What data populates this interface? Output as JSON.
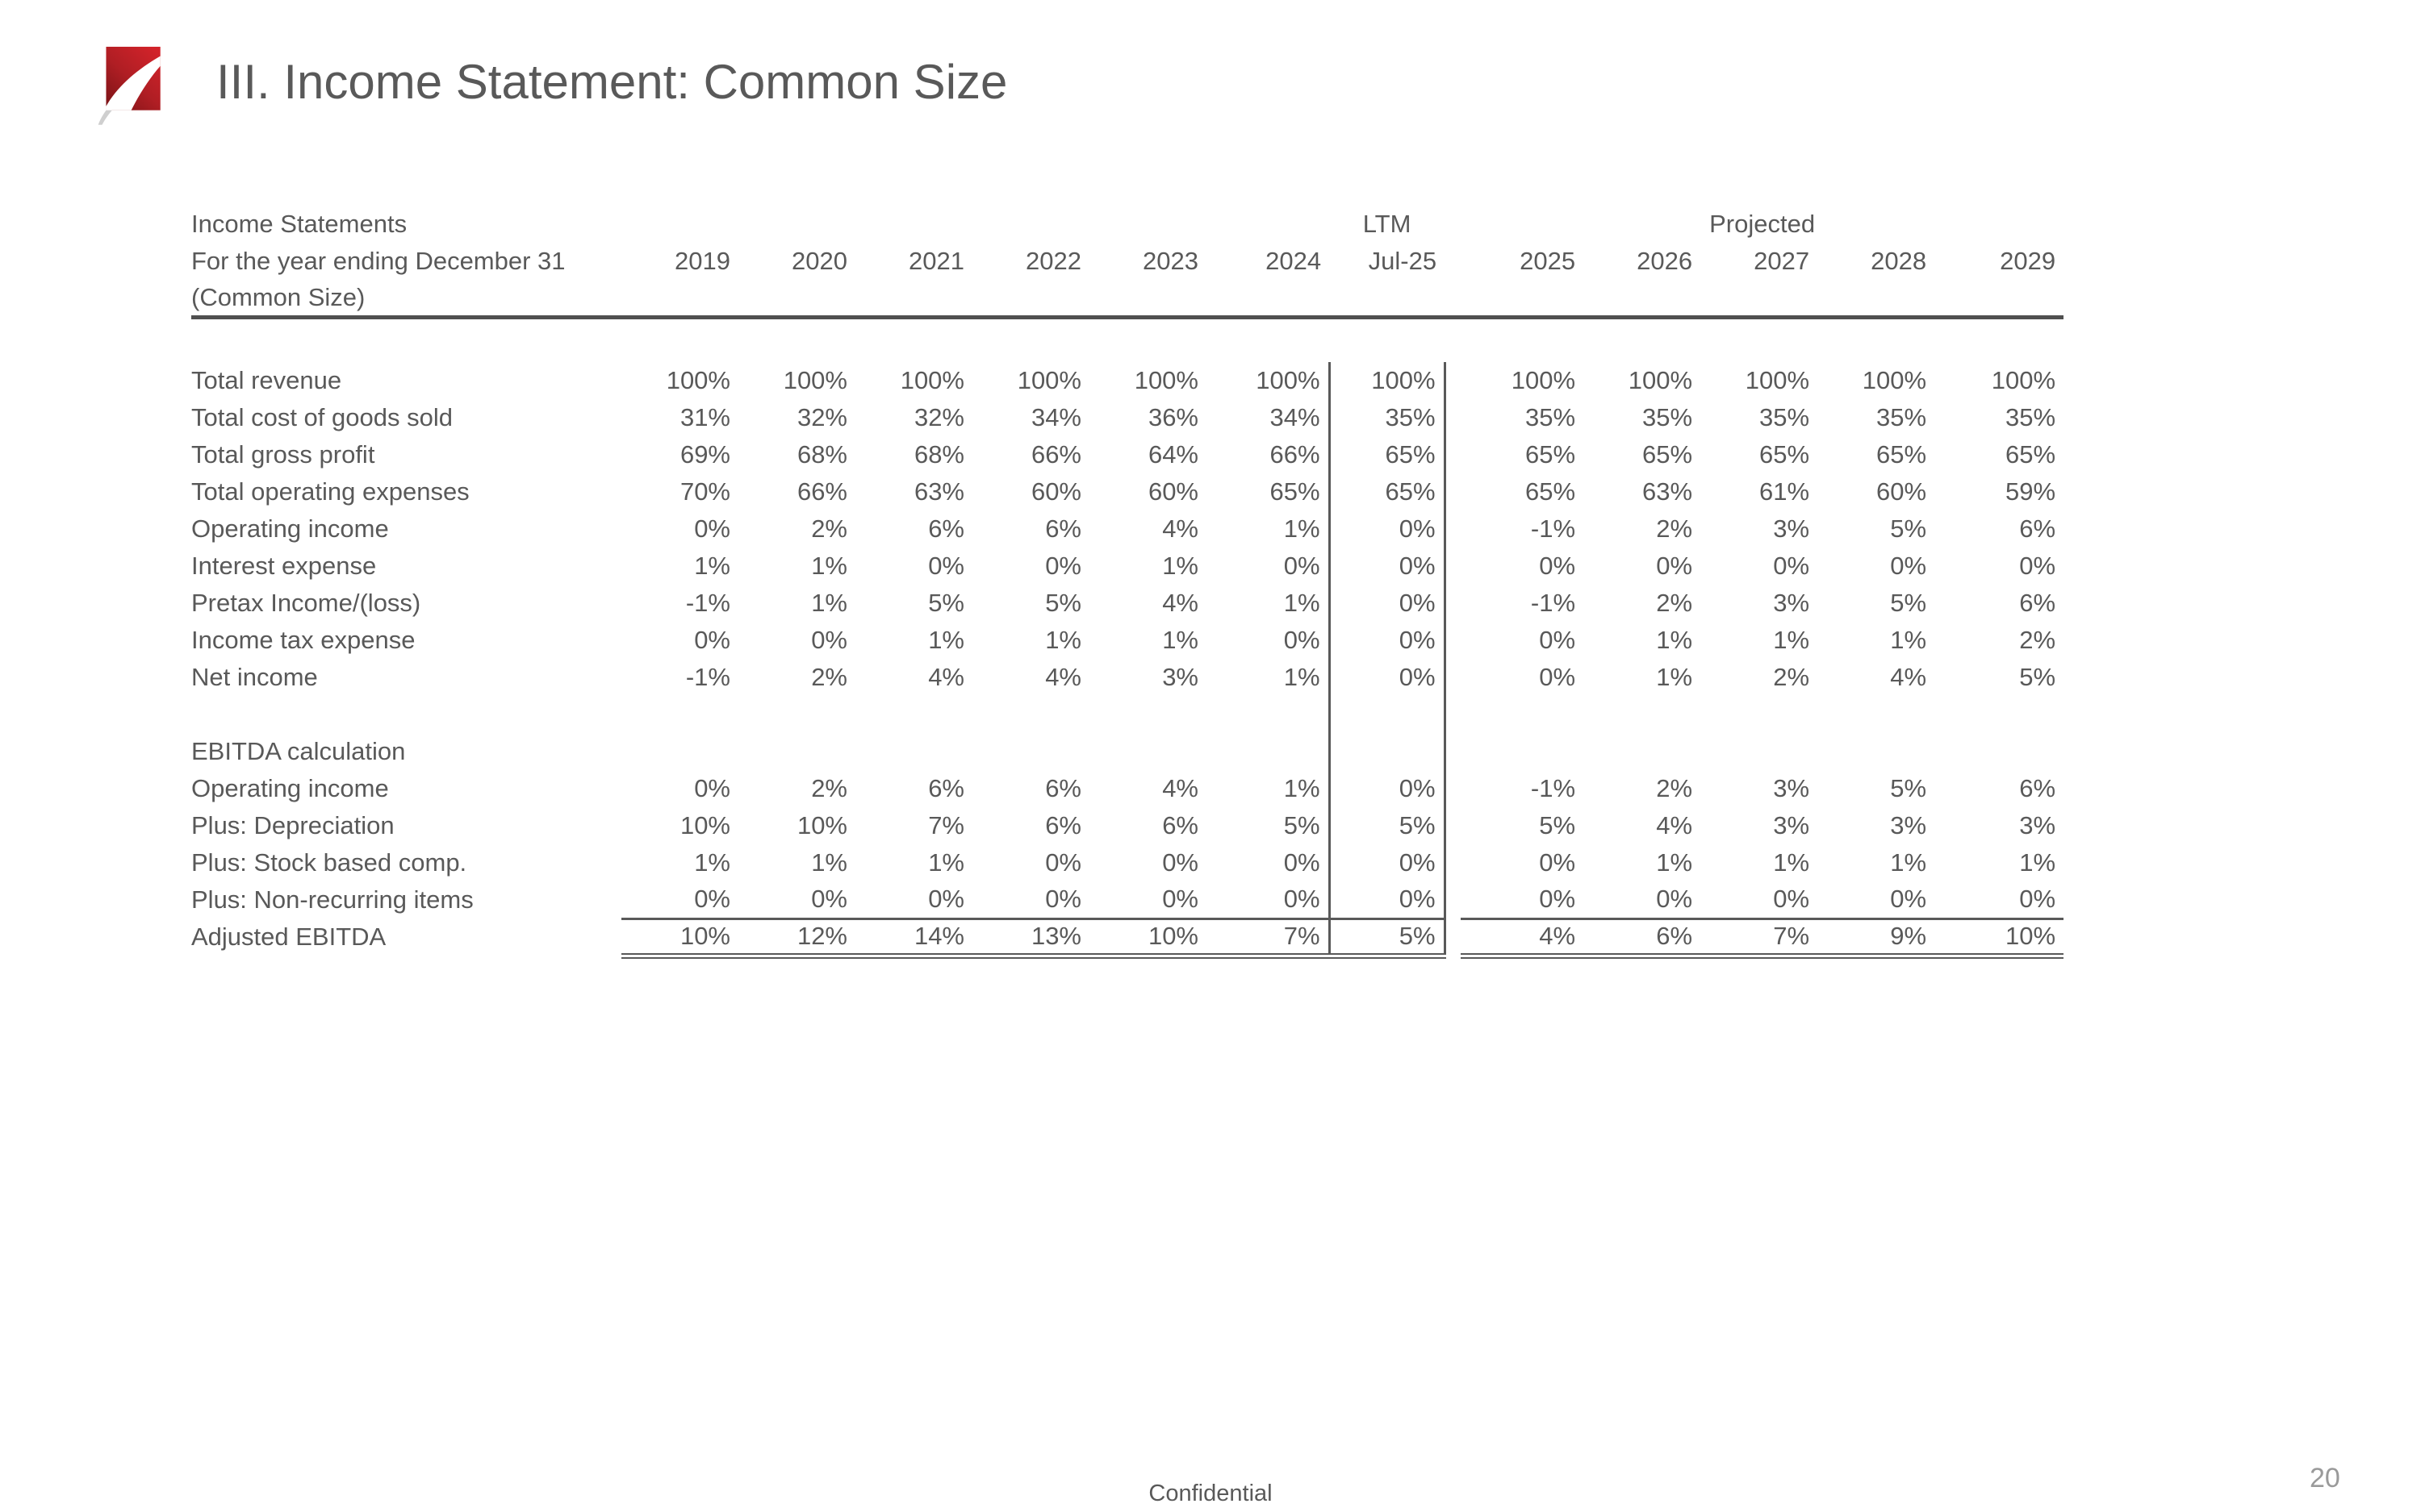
{
  "slide": {
    "title": "III. Income Statement: Common Size",
    "footer": "Confidential",
    "page_number": "20"
  },
  "icons": {
    "logo": "red-swoosh-logo"
  },
  "colors": {
    "text_gray": "#595959",
    "rule_gray": "#505050",
    "page_number_gray": "#9a9a9a",
    "logo_red_bright": "#d2232a",
    "logo_red_dark": "#7a1316"
  },
  "table": {
    "header": {
      "title_line1": "Income Statements",
      "title_line2": "For the year ending December 31",
      "title_line3": "(Common Size)",
      "ltm_label": "LTM",
      "projected_label": "Projected",
      "columns": [
        "2019",
        "2020",
        "2021",
        "2022",
        "2023",
        "2024",
        "Jul-25",
        "2025",
        "2026",
        "2027",
        "2028",
        "2029"
      ]
    },
    "sections": [
      {
        "name": "income_statement",
        "rows": [
          {
            "label": "Total revenue",
            "values": [
              "100%",
              "100%",
              "100%",
              "100%",
              "100%",
              "100%",
              "100%",
              "100%",
              "100%",
              "100%",
              "100%",
              "100%"
            ]
          },
          {
            "label": "Total cost of goods sold",
            "values": [
              "31%",
              "32%",
              "32%",
              "34%",
              "36%",
              "34%",
              "35%",
              "35%",
              "35%",
              "35%",
              "35%",
              "35%"
            ]
          },
          {
            "label": "Total gross profit",
            "values": [
              "69%",
              "68%",
              "68%",
              "66%",
              "64%",
              "66%",
              "65%",
              "65%",
              "65%",
              "65%",
              "65%",
              "65%"
            ]
          },
          {
            "label": "Total operating expenses",
            "values": [
              "70%",
              "66%",
              "63%",
              "60%",
              "60%",
              "65%",
              "65%",
              "65%",
              "63%",
              "61%",
              "60%",
              "59%"
            ]
          },
          {
            "label": "Operating income",
            "values": [
              "0%",
              "2%",
              "6%",
              "6%",
              "4%",
              "1%",
              "0%",
              "-1%",
              "2%",
              "3%",
              "5%",
              "6%"
            ]
          },
          {
            "label": "Interest expense",
            "values": [
              "1%",
              "1%",
              "0%",
              "0%",
              "1%",
              "0%",
              "0%",
              "0%",
              "0%",
              "0%",
              "0%",
              "0%"
            ]
          },
          {
            "label": "Pretax Income/(loss)",
            "values": [
              "-1%",
              "1%",
              "5%",
              "5%",
              "4%",
              "1%",
              "0%",
              "-1%",
              "2%",
              "3%",
              "5%",
              "6%"
            ]
          },
          {
            "label": "Income tax expense",
            "values": [
              "0%",
              "0%",
              "1%",
              "1%",
              "1%",
              "0%",
              "0%",
              "0%",
              "1%",
              "1%",
              "1%",
              "2%"
            ]
          },
          {
            "label": "Net income",
            "values": [
              "-1%",
              "2%",
              "4%",
              "4%",
              "3%",
              "1%",
              "0%",
              "0%",
              "1%",
              "2%",
              "4%",
              "5%"
            ]
          }
        ]
      },
      {
        "name": "ebitda_calculation",
        "heading": "EBITDA calculation",
        "rows": [
          {
            "label": "Operating income",
            "values": [
              "0%",
              "2%",
              "6%",
              "6%",
              "4%",
              "1%",
              "0%",
              "-1%",
              "2%",
              "3%",
              "5%",
              "6%"
            ]
          },
          {
            "label": "Plus: Depreciation",
            "values": [
              "10%",
              "10%",
              "7%",
              "6%",
              "6%",
              "5%",
              "5%",
              "5%",
              "4%",
              "3%",
              "3%",
              "3%"
            ]
          },
          {
            "label": "Plus: Stock based comp.",
            "values": [
              "1%",
              "1%",
              "1%",
              "0%",
              "0%",
              "0%",
              "0%",
              "0%",
              "1%",
              "1%",
              "1%",
              "1%"
            ]
          },
          {
            "label": "Plus: Non-recurring items",
            "values": [
              "0%",
              "0%",
              "0%",
              "0%",
              "0%",
              "0%",
              "0%",
              "0%",
              "0%",
              "0%",
              "0%",
              "0%"
            ]
          },
          {
            "label": "Adjusted EBITDA",
            "values": [
              "10%",
              "12%",
              "14%",
              "13%",
              "10%",
              "7%",
              "5%",
              "4%",
              "6%",
              "7%",
              "9%",
              "10%"
            ],
            "emphasis": "total"
          }
        ]
      }
    ]
  }
}
